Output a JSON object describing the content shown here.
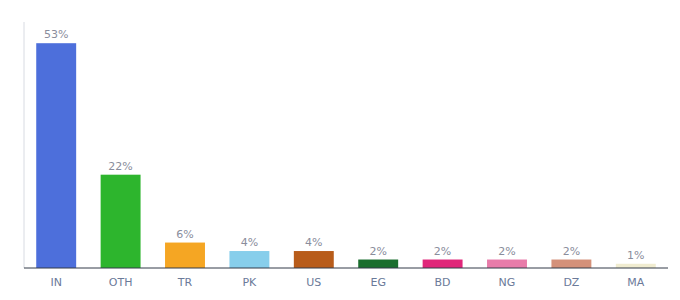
{
  "chart_data": {
    "type": "bar",
    "categories": [
      "IN",
      "OTH",
      "TR",
      "PK",
      "US",
      "EG",
      "BD",
      "NG",
      "DZ",
      "MA"
    ],
    "values": [
      53,
      22,
      6,
      4,
      4,
      2,
      2,
      2,
      2,
      1
    ],
    "value_labels": [
      "53%",
      "22%",
      "6%",
      "4%",
      "4%",
      "2%",
      "2%",
      "2%",
      "2%",
      "1%"
    ],
    "colors": [
      "#4d6fdb",
      "#2db52d",
      "#f5a623",
      "#87ceeb",
      "#b85c1a",
      "#1a6e2e",
      "#e0267a",
      "#e87caa",
      "#d4917a",
      "#f0ecd0"
    ],
    "ylim": [
      0,
      58
    ],
    "data_labels": true,
    "tick_labels": "x",
    "grid": false
  }
}
